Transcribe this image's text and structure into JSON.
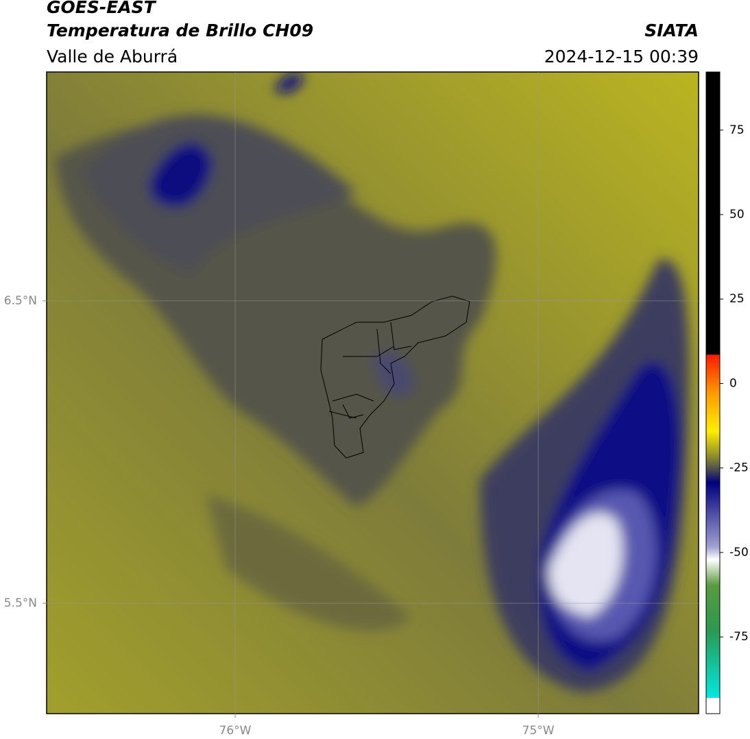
{
  "header": {
    "satellite": "GOES-EAST",
    "product": "Temperatura de Brillo CH09",
    "region": "Valle de Aburrá",
    "agency": "SIATA",
    "datetime": "2024-12-15 00:39"
  },
  "map": {
    "xlim": [
      -76.622,
      -74.471
    ],
    "ylim": [
      5.135,
      7.257
    ],
    "xticks": [
      {
        "value": -76,
        "label": "76°W"
      },
      {
        "value": -75,
        "label": "75°W"
      }
    ],
    "yticks": [
      {
        "value": 6.5,
        "label": "6.5°N"
      },
      {
        "value": 5.5,
        "label": "5.5°N"
      }
    ]
  },
  "colorbar": {
    "lim": [
      -97.7,
      92.2
    ],
    "ticks": [
      75,
      50,
      25,
      0,
      -25,
      -50,
      -75
    ]
  }
}
